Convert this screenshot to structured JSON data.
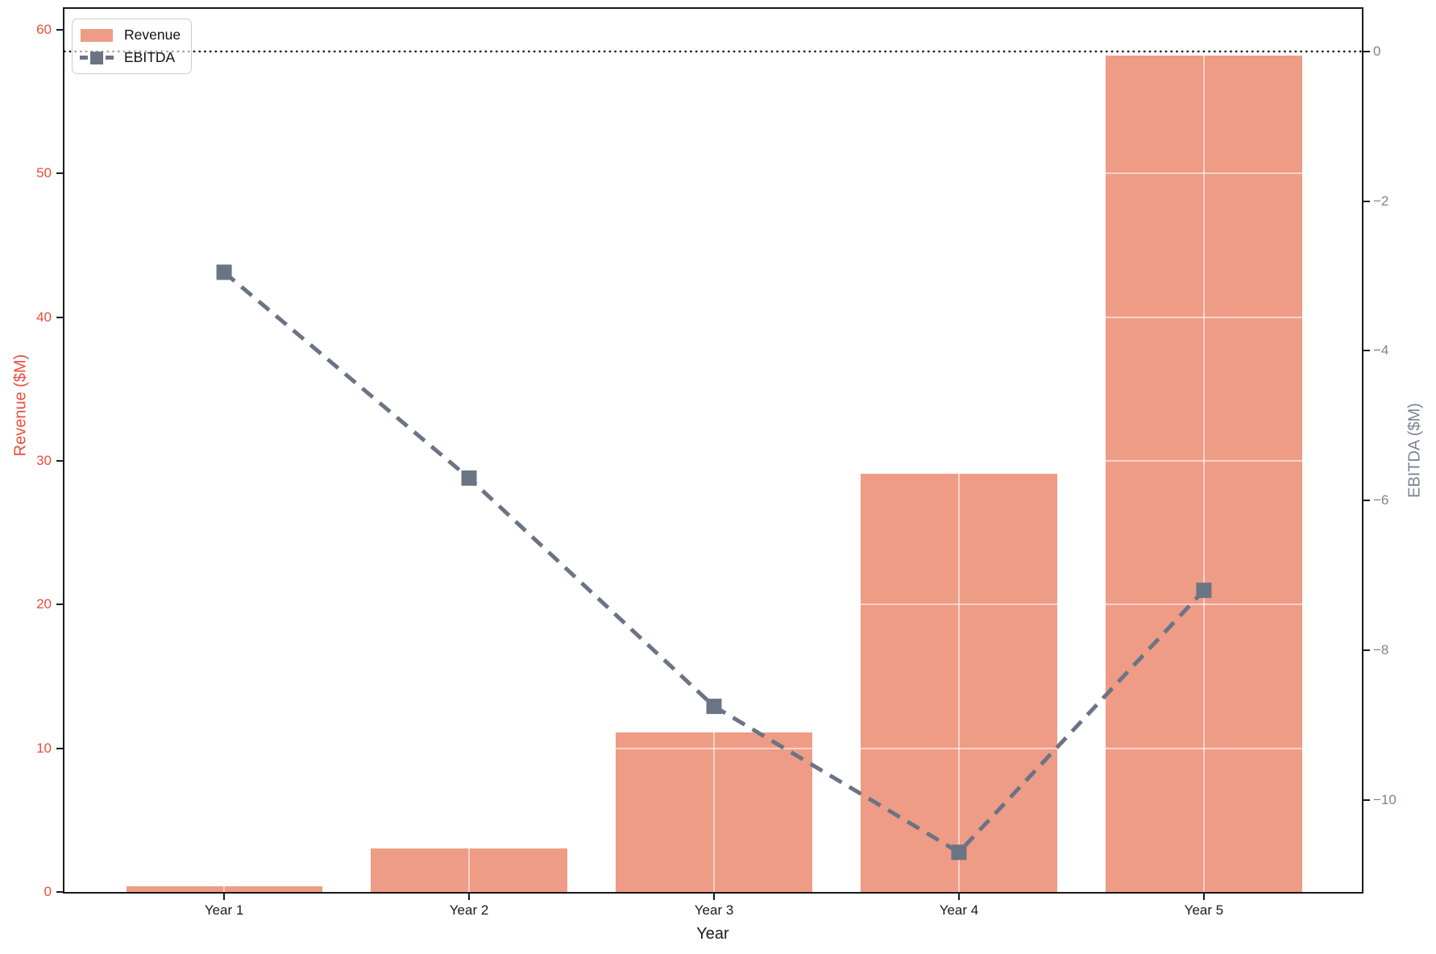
{
  "colors": {
    "bar": "#EE9C86",
    "line": "#6B7484",
    "left_axis_text": "#ED4C3C",
    "right_axis_text": "#7C8494",
    "x_axis_text": "#1A1A1A",
    "spine": "#1A1A1A",
    "zero_line": "#111111",
    "grid": "rgba(255,255,255,0.55)",
    "legend_border": "#CCCCCC"
  },
  "chart_data": {
    "type": "combo",
    "categories": [
      "Year 1",
      "Year 2",
      "Year 3",
      "Year 4",
      "Year 5"
    ],
    "series": [
      {
        "name": "Revenue",
        "type": "bar",
        "axis": "left",
        "color": "#EE9C86",
        "bar_width": 0.8,
        "values": [
          0.4,
          3.0,
          11.1,
          29.1,
          58.2
        ]
      },
      {
        "name": "EBITDA",
        "type": "line",
        "axis": "right",
        "color": "#6B7484",
        "line_style": "dashed",
        "marker": "square",
        "values": [
          -2.95,
          -5.7,
          -8.75,
          -10.7,
          -7.2
        ]
      }
    ],
    "x_axis": {
      "label": "Year",
      "range": [
        -0.655,
        4.645
      ]
    },
    "left_axis": {
      "label": "Revenue ($M)",
      "min": 0,
      "max": 61.5,
      "ticks": [
        0,
        10,
        20,
        30,
        40,
        50,
        60
      ]
    },
    "right_axis": {
      "label": "EBITDA ($M)",
      "min": -11.23,
      "max": 0.58,
      "ticks": [
        0,
        -2,
        -4,
        -6,
        -8,
        -10
      ]
    },
    "annotations": {
      "zero_line": {
        "axis": "right",
        "value": 0,
        "style": "dotted"
      }
    },
    "grid": true,
    "legend_position": "upper left"
  }
}
